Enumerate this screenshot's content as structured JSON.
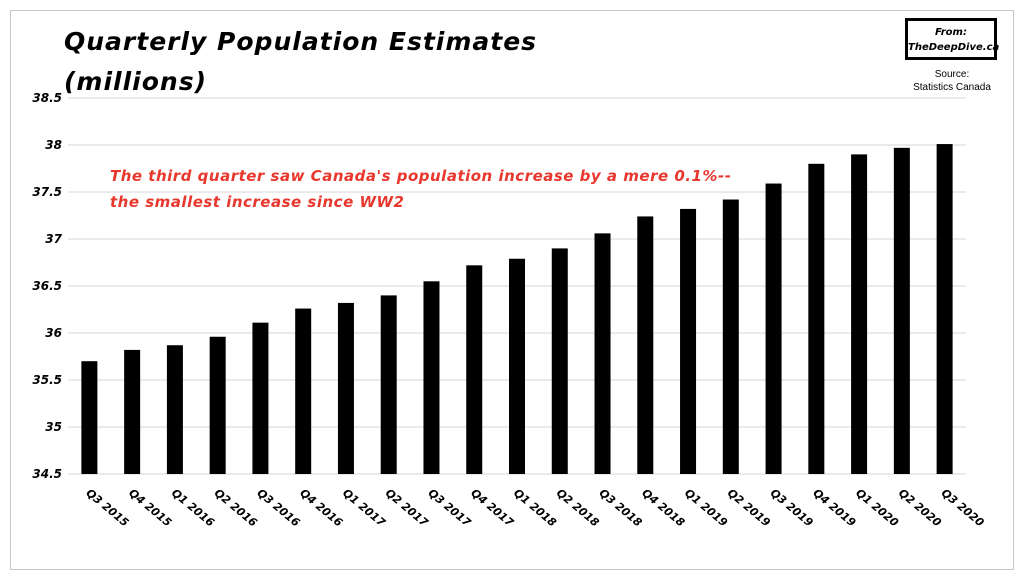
{
  "chart_data": {
    "type": "bar",
    "title": "Quarterly Population Estimates",
    "subtitle": "(millions)",
    "xlabel": "",
    "ylabel": "",
    "ylim": [
      34.5,
      38.5
    ],
    "yticks": [
      34.5,
      35,
      35.5,
      36,
      36.5,
      37,
      37.5,
      38,
      38.5
    ],
    "ytick_labels": [
      "34.5",
      "35",
      "35.5",
      "36",
      "36.5",
      "37",
      "37.5",
      "38",
      "38.5"
    ],
    "grid": true,
    "categories": [
      "Q3 2015",
      "Q4 2015",
      "Q1 2016",
      "Q2 2016",
      "Q3 2016",
      "Q4 2016",
      "Q1 2017",
      "Q2 2017",
      "Q3 2017",
      "Q4 2017",
      "Q1 2018",
      "Q2 2018",
      "Q3 2018",
      "Q4 2018",
      "Q1 2019",
      "Q2 2019",
      "Q3 2019",
      "Q4 2019",
      "Q1 2020",
      "Q2 2020",
      "Q3 2020"
    ],
    "values": [
      35.7,
      35.82,
      35.87,
      35.96,
      36.11,
      36.26,
      36.32,
      36.4,
      36.55,
      36.72,
      36.79,
      36.9,
      37.06,
      37.24,
      37.32,
      37.42,
      37.59,
      37.8,
      37.9,
      37.97,
      38.01
    ],
    "bar_color": "#000000",
    "annotation": "The third quarter saw Canada's population increase by a mere 0.1%-- the smallest increase since WW2",
    "annotation_color": "#e8382e"
  },
  "badge": {
    "line1": "From:",
    "line2": "TheDeepDive.ca"
  },
  "source": {
    "line1": "Source:",
    "line2": "Statistics Canada"
  }
}
